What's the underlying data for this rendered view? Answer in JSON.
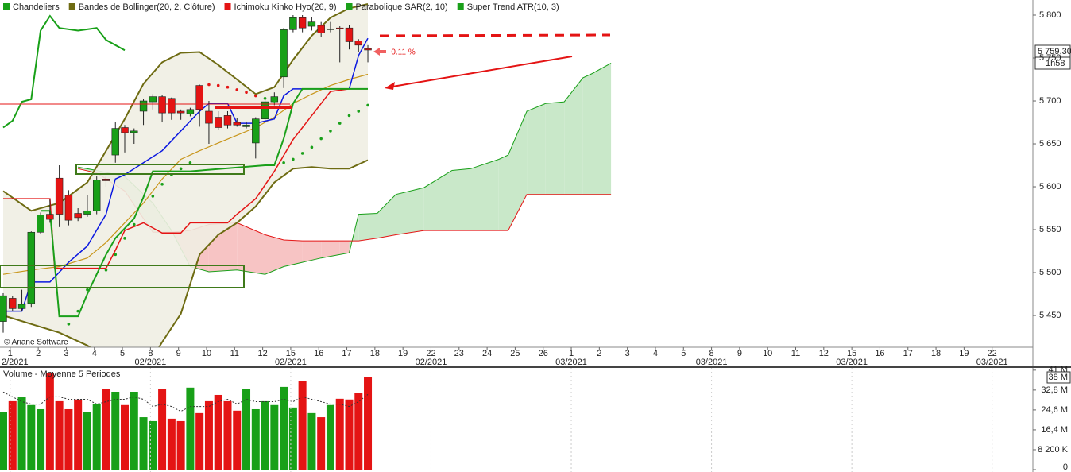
{
  "chart_data": [
    {
      "type": "candlestick",
      "xlim": [
        -0.34,
        110.11
      ],
      "ylim": [
        5413,
        5817.6
      ],
      "xticks": [
        {
          "value": 0.75,
          "label": "1"
        },
        {
          "value": 3.75,
          "label": "2"
        },
        {
          "value": 6.75,
          "label": "3"
        },
        {
          "value": 9.75,
          "label": "4"
        },
        {
          "value": 12.75,
          "label": "5"
        },
        {
          "value": 15.75,
          "label": "8"
        },
        {
          "value": 18.75,
          "label": "9"
        },
        {
          "value": 21.75,
          "label": "10"
        },
        {
          "value": 24.75,
          "label": "11"
        },
        {
          "value": 27.75,
          "label": "12"
        },
        {
          "value": 30.75,
          "label": "15"
        },
        {
          "value": 33.75,
          "label": "16"
        },
        {
          "value": 36.75,
          "label": "17"
        },
        {
          "value": 39.75,
          "label": "18"
        },
        {
          "value": 42.75,
          "label": "19"
        },
        {
          "value": 45.75,
          "label": "22"
        },
        {
          "value": 48.75,
          "label": "23"
        },
        {
          "value": 51.75,
          "label": "24"
        },
        {
          "value": 54.75,
          "label": "25"
        },
        {
          "value": 57.75,
          "label": "26"
        },
        {
          "value": 60.75,
          "label": "1"
        },
        {
          "value": 63.75,
          "label": "2"
        },
        {
          "value": 66.75,
          "label": "3"
        },
        {
          "value": 69.75,
          "label": "4"
        },
        {
          "value": 72.75,
          "label": "5"
        },
        {
          "value": 75.75,
          "label": "8"
        },
        {
          "value": 78.75,
          "label": "9"
        },
        {
          "value": 81.75,
          "label": "10"
        },
        {
          "value": 84.75,
          "label": "11"
        },
        {
          "value": 87.75,
          "label": "12"
        },
        {
          "value": 90.75,
          "label": "15"
        },
        {
          "value": 93.75,
          "label": "16"
        },
        {
          "value": 96.75,
          "label": "17"
        },
        {
          "value": 99.75,
          "label": "18"
        },
        {
          "value": 102.75,
          "label": "19"
        },
        {
          "value": 105.75,
          "label": "22"
        }
      ],
      "xticks_month": [
        {
          "value": 0.75,
          "label": "2/2021"
        },
        {
          "value": 15.75,
          "label": "02/2021"
        },
        {
          "value": 30.75,
          "label": "02/2021"
        },
        {
          "value": 45.75,
          "label": "02/2021"
        },
        {
          "value": 60.75,
          "label": "03/2021"
        },
        {
          "value": 75.75,
          "label": "03/2021"
        },
        {
          "value": 90.75,
          "label": "03/2021"
        },
        {
          "value": 105.75,
          "label": "03/2021"
        }
      ],
      "yticks": [
        {
          "value": 5800,
          "label": "5 800"
        },
        {
          "value": 5750,
          "label": "5 750"
        },
        {
          "value": 5700,
          "label": "5 700"
        },
        {
          "value": 5650,
          "label": "5 650"
        },
        {
          "value": 5600,
          "label": "5 600"
        },
        {
          "value": 5550,
          "label": "5 550"
        },
        {
          "value": 5500,
          "label": "5 500"
        },
        {
          "value": 5450,
          "label": "5 450"
        }
      ],
      "series": [
        {
          "name": "Chandeliers",
          "color": "#18a018",
          "color_down": "#e41414",
          "x": [
            0,
            1,
            2,
            3,
            4,
            5,
            6,
            7,
            8,
            9,
            10,
            11,
            12,
            13,
            14,
            15,
            16,
            17,
            18,
            19,
            20,
            21,
            22,
            23,
            24,
            25,
            26,
            27,
            28,
            29,
            30,
            31,
            32,
            33,
            34,
            35,
            36,
            37,
            38,
            39
          ],
          "open": [
            5443,
            5470,
            5458,
            5464,
            5547,
            5568,
            5610,
            5590,
            5569,
            5568,
            5572,
            5609,
            5637,
            5669,
            5663,
            5688,
            5699,
            5705,
            5703,
            5688,
            5685,
            5718,
            5688,
            5681,
            5683,
            5675,
            5670,
            5651,
            5679,
            5699,
            5728,
            5783,
            5797,
            5787,
            5788,
            5783,
            5785,
            5785,
            5770,
            5761
          ],
          "high": [
            5476,
            5473,
            5480,
            5548,
            5570,
            5585,
            5625,
            5596,
            5575,
            5590,
            5612,
            5612,
            5675,
            5672,
            5668,
            5702,
            5708,
            5707,
            5704,
            5690,
            5692,
            5719,
            5700,
            5688,
            5688,
            5680,
            5676,
            5681,
            5704,
            5710,
            5785,
            5800,
            5800,
            5798,
            5792,
            5792,
            5787,
            5788,
            5772,
            5765
          ],
          "low": [
            5430,
            5455,
            5455,
            5460,
            5545,
            5558,
            5553,
            5555,
            5560,
            5565,
            5568,
            5600,
            5628,
            5640,
            5650,
            5672,
            5690,
            5675,
            5678,
            5678,
            5682,
            5670,
            5650,
            5666,
            5668,
            5670,
            5668,
            5633,
            5675,
            5695,
            5715,
            5780,
            5780,
            5782,
            5775,
            5780,
            5745,
            5760,
            5757,
            5745
          ],
          "close": [
            5473,
            5458,
            5463,
            5547,
            5567,
            5562,
            5568,
            5561,
            5564,
            5572,
            5608,
            5607,
            5668,
            5663,
            5665,
            5700,
            5705,
            5686,
            5686,
            5686,
            5690,
            5690,
            5674,
            5669,
            5672,
            5672,
            5672,
            5679,
            5699,
            5705,
            5783,
            5797,
            5785,
            5792,
            5779,
            5784,
            5784,
            5769,
            5765,
            5759.3
          ]
        },
        {
          "name": "Bandes de Bollinger(20, 2, Clôture)",
          "color": "#6e6b12",
          "middle_color": "#c8951a",
          "fill": "#efeee3",
          "x": [
            0,
            3,
            6,
            9,
            11,
            13,
            15,
            17,
            19,
            21,
            23,
            25,
            27,
            29,
            31,
            33,
            35,
            37,
            39
          ],
          "upper": [
            5595,
            5572,
            5581,
            5605,
            5642,
            5679,
            5720,
            5745,
            5756,
            5757,
            5742,
            5725,
            5708,
            5716,
            5748,
            5776,
            5797,
            5808,
            5813
          ],
          "middle": [
            5498,
            5503,
            5507,
            5517,
            5535,
            5558,
            5581,
            5609,
            5632,
            5642,
            5651,
            5660,
            5669,
            5681,
            5697,
            5708,
            5718,
            5725,
            5731
          ],
          "lower": [
            5450,
            5440,
            5430,
            5415,
            5400,
            5392,
            5383,
            5419,
            5452,
            5521,
            5544,
            5558,
            5577,
            5605,
            5621,
            5623,
            5621,
            5621,
            5631
          ]
        },
        {
          "name": "Ichimoku Kinko Hyo(26, 9)",
          "color": "#e41414",
          "tenkan": {
            "color": "#0b18e0",
            "x": [
              0,
              2,
              3,
              5,
              7,
              9,
              11,
              12,
              13,
              15,
              17,
              19,
              21,
              22,
              24,
              25,
              27,
              29,
              30,
              31,
              33,
              37,
              38,
              39
            ],
            "values": [
              5455,
              5455,
              5489,
              5489,
              5512,
              5531,
              5568,
              5609,
              5614,
              5628,
              5642,
              5665,
              5688,
              5697,
              5697,
              5674,
              5674,
              5679,
              5706,
              5714,
              5714,
              5714,
              5753,
              5773
            ]
          },
          "kijun": {
            "color": "#e41414",
            "x": [
              0,
              5,
              5.5,
              11,
              12,
              13,
              15,
              17,
              19,
              20,
              24,
              25,
              27,
              29,
              31,
              33,
              35,
              37,
              39
            ],
            "values": [
              5586,
              5586,
              5505,
              5505,
              5526,
              5549,
              5558,
              5546,
              5546,
              5558,
              5558,
              5568,
              5586,
              5618,
              5655,
              5683,
              5711,
              5714,
              5714
            ]
          },
          "chikou": {
            "color": "#18a018",
            "x": [
              0,
              1,
              2,
              3,
              4,
              5,
              6,
              8,
              10,
              11,
              13
            ],
            "values": [
              5669,
              5677,
              5699,
              5702,
              5782,
              5799,
              5785,
              5782,
              5785,
              5771,
              5759
            ]
          },
          "cloud": {
            "color_up": "#c9e8c9",
            "color_down": "#f7c4c4",
            "line_a_color": "#1aa01a",
            "line_b_color": "#e41414",
            "x": [
              8,
              10,
              13,
              16,
              18,
              20,
              22,
              25,
              28,
              30,
              32,
              34,
              36,
              37,
              38,
              40,
              42,
              45,
              48,
              50,
              53,
              54,
              56,
              58,
              60,
              62,
              63,
              65
            ],
            "span_a": [
              5623,
              5619,
              5612,
              5581,
              5549,
              5507,
              5501,
              5503,
              5498,
              5507,
              5512,
              5517,
              5521,
              5523,
              5568,
              5569,
              5591,
              5599,
              5619,
              5621,
              5632,
              5637,
              5688,
              5697,
              5699,
              5727,
              5732,
              5744
            ],
            "span_b": [
              5621,
              5616,
              5595,
              5547,
              5547,
              5549,
              5556,
              5558,
              5544,
              5538,
              5537,
              5537,
              5537,
              5537,
              5537,
              5540,
              5544,
              5549,
              5549,
              5549,
              5549,
              5549,
              5591,
              5591,
              5591,
              5591,
              5591,
              5591
            ]
          }
        },
        {
          "name": "Parabolique SAR(2, 10)",
          "color": "#1aa01a",
          "color_above": "#e41414",
          "x": [
            7,
            8,
            9,
            11,
            12,
            13,
            14,
            16,
            17,
            18,
            19,
            20,
            22,
            23,
            24,
            25,
            26,
            27,
            28,
            29,
            30,
            31,
            32,
            33,
            34,
            35,
            36,
            37,
            38,
            39
          ],
          "values": [
            5440,
            5455,
            5480,
            5503,
            5521,
            5540,
            5556,
            5589,
            5603,
            5614,
            5621,
            5628,
            5719,
            5718,
            5716,
            5713,
            5710,
            5706,
            5703,
            5700,
            5628,
            5632,
            5639,
            5646,
            5656,
            5665,
            5674,
            5683,
            5688,
            5695
          ]
        },
        {
          "name": "Super Trend ATR(10, 3)",
          "color": "#1aa01a",
          "x": [
            4,
            5,
            6,
            8,
            9,
            11,
            12,
            14,
            15,
            16,
            20,
            28,
            29,
            30,
            31,
            32,
            39
          ],
          "values": [
            5572,
            5572,
            5449,
            5449,
            5475,
            5521,
            5540,
            5563,
            5588,
            5618,
            5618,
            5625,
            5625,
            5656,
            5697,
            5714,
            5714
          ]
        }
      ],
      "last_price": {
        "value": 5759.3,
        "label": "5 759,30"
      },
      "timer": "1h58",
      "change": {
        "value": -0.11,
        "label": "-0.11 %"
      },
      "copyright": "© Ariane Software"
    },
    {
      "type": "bar",
      "title": "Volume  - Moyenne 5 Periodes",
      "xlim": [
        -0.34,
        110.11
      ],
      "ylim": [
        0,
        41600000
      ],
      "yticks": [
        {
          "value": 41000000,
          "label": "41 M"
        },
        {
          "value": 32800000,
          "label": "32,8 M"
        },
        {
          "value": 24600000,
          "label": "24,6 M"
        },
        {
          "value": 16400000,
          "label": "16,4 M"
        },
        {
          "value": 8200000,
          "label": "8 200 K"
        },
        0
      ],
      "x": [
        0,
        1,
        2,
        3,
        4,
        5,
        6,
        7,
        8,
        9,
        10,
        11,
        12,
        13,
        14,
        15,
        16,
        17,
        18,
        19,
        20,
        21,
        22,
        23,
        24,
        25,
        26,
        27,
        28,
        29,
        30,
        31,
        32,
        33,
        34,
        35,
        36,
        37,
        38,
        39
      ],
      "color_up": "#18a018",
      "color_down": "#e41414",
      "values": [
        23900000,
        28200000,
        29800000,
        26600000,
        24900000,
        39700000,
        28200000,
        24900000,
        28900000,
        23900000,
        27200000,
        33100000,
        32100000,
        26600000,
        32100000,
        21600000,
        20000000,
        33100000,
        21000000,
        20000000,
        33800000,
        23300000,
        28200000,
        30800000,
        28200000,
        24300000,
        33100000,
        24900000,
        28200000,
        26600000,
        34100000,
        25600000,
        36400000,
        23300000,
        21600000,
        26600000,
        29200000,
        28900000,
        31500000,
        38000000
      ],
      "average": {
        "color": "#333333",
        "values": [
          32000000,
          30000000,
          28000000,
          27000000,
          27000000,
          30000000,
          30000000,
          29000000,
          29000000,
          29000000,
          27000000,
          28000000,
          29000000,
          29000000,
          30000000,
          29000000,
          26000000,
          27000000,
          26000000,
          24000000,
          26000000,
          26000000,
          26000000,
          28000000,
          29000000,
          27000000,
          29000000,
          28000000,
          28000000,
          28000000,
          29000000,
          28000000,
          30000000,
          29000000,
          28000000,
          27000000,
          27000000,
          26000000,
          28000000,
          31000000
        ]
      },
      "last_volume": {
        "value": 38000000,
        "label": "38 M"
      }
    }
  ]
}
